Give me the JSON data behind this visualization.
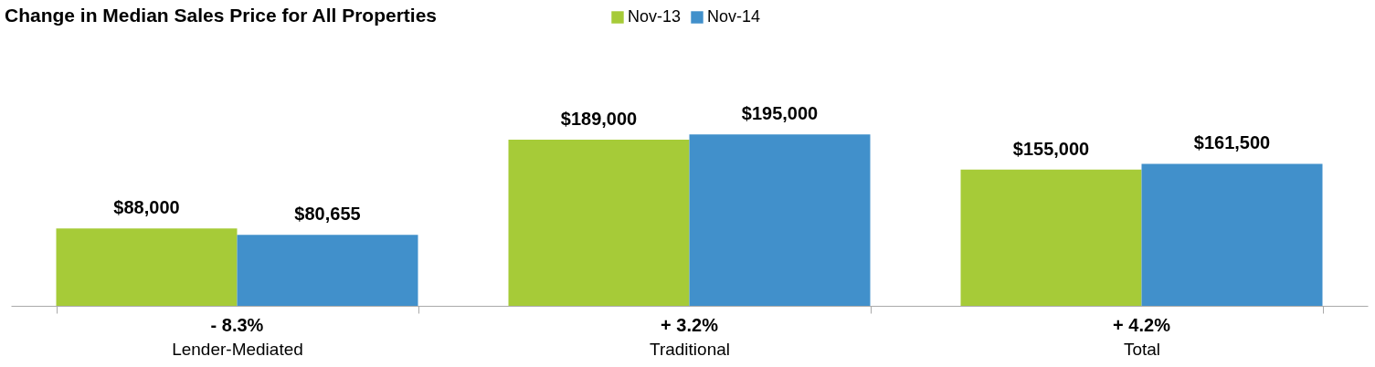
{
  "chart_data": {
    "type": "bar",
    "title": "Change in Median Sales Price for All Properties",
    "categories": [
      "Lender-Mediated",
      "Traditional",
      "Total"
    ],
    "series": [
      {
        "name": "Nov-13",
        "color": "#a6cb38",
        "values": [
          88000,
          189000,
          155000
        ],
        "value_labels": [
          "$88,000",
          "$189,000",
          "$155,000"
        ]
      },
      {
        "name": "Nov-14",
        "color": "#4190cb",
        "values": [
          80655,
          195000,
          161500
        ],
        "value_labels": [
          "$80,655",
          "$195,000",
          "$161,500"
        ]
      }
    ],
    "annotations": [
      "- 8.3%",
      "+ 3.2%",
      "+ 4.2%"
    ],
    "legend": "top"
  }
}
